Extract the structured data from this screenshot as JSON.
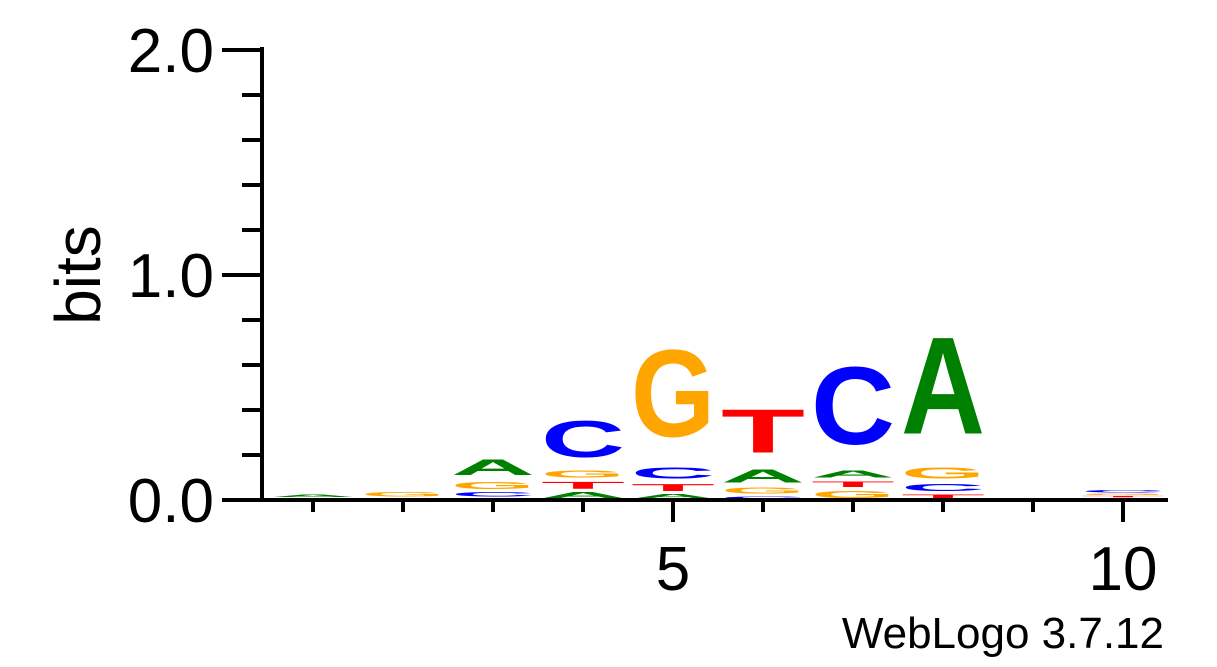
{
  "chart_data": {
    "type": "sequence-logo",
    "title": "",
    "ylabel": "bits",
    "ylim": [
      0,
      2
    ],
    "y_major_ticks": [
      0,
      1,
      2
    ],
    "y_tick_labels": [
      "0.0",
      "1.0",
      "2.0"
    ],
    "y_minor_step": 0.2,
    "x_positions": [
      1,
      2,
      3,
      4,
      5,
      6,
      7,
      8,
      9,
      10
    ],
    "x_tick_labels": [
      {
        "pos": 5,
        "label": "5"
      },
      {
        "pos": 10,
        "label": "10"
      }
    ],
    "colors": {
      "A": "#008000",
      "C": "#0000ff",
      "G": "#ffa500",
      "T": "#ff0000"
    },
    "columns": [
      {
        "pos": 1,
        "stack": [
          {
            "letter": "T",
            "height": 0.01
          },
          {
            "letter": "A",
            "height": 0.02
          }
        ]
      },
      {
        "pos": 2,
        "stack": [
          {
            "letter": "T",
            "height": 0.01
          },
          {
            "letter": "G",
            "height": 0.03
          }
        ]
      },
      {
        "pos": 3,
        "stack": [
          {
            "letter": "T",
            "height": 0.01
          },
          {
            "letter": "C",
            "height": 0.03
          },
          {
            "letter": "G",
            "height": 0.05
          },
          {
            "letter": "A",
            "height": 0.11
          }
        ]
      },
      {
        "pos": 4,
        "stack": [
          {
            "letter": "A",
            "height": 0.04
          },
          {
            "letter": "T",
            "height": 0.05
          },
          {
            "letter": "G",
            "height": 0.05
          },
          {
            "letter": "C",
            "height": 0.26
          }
        ]
      },
      {
        "pos": 5,
        "stack": [
          {
            "letter": "A",
            "height": 0.03
          },
          {
            "letter": "T",
            "height": 0.05
          },
          {
            "letter": "C",
            "height": 0.08
          },
          {
            "letter": "G",
            "height": 0.62
          }
        ]
      },
      {
        "pos": 6,
        "stack": [
          {
            "letter": "C",
            "height": 0.02
          },
          {
            "letter": "G",
            "height": 0.04
          },
          {
            "letter": "A",
            "height": 0.09
          },
          {
            "letter": "T",
            "height": 0.31
          }
        ]
      },
      {
        "pos": 7,
        "stack": [
          {
            "letter": "G",
            "height": 0.05
          },
          {
            "letter": "T",
            "height": 0.04
          },
          {
            "letter": "A",
            "height": 0.05
          },
          {
            "letter": "C",
            "height": 0.55
          }
        ]
      },
      {
        "pos": 8,
        "stack": [
          {
            "letter": "T",
            "height": 0.03
          },
          {
            "letter": "C",
            "height": 0.05
          },
          {
            "letter": "G",
            "height": 0.08
          },
          {
            "letter": "A",
            "height": 0.69
          }
        ]
      },
      {
        "pos": 9,
        "stack": [
          {
            "letter": "T",
            "height": 0.01
          }
        ]
      },
      {
        "pos": 10,
        "stack": [
          {
            "letter": "A",
            "height": 0.01
          },
          {
            "letter": "T",
            "height": 0.01
          },
          {
            "letter": "G",
            "height": 0.01
          },
          {
            "letter": "C",
            "height": 0.02
          }
        ]
      }
    ]
  },
  "footer": {
    "credit": "WebLogo 3.7.12"
  }
}
